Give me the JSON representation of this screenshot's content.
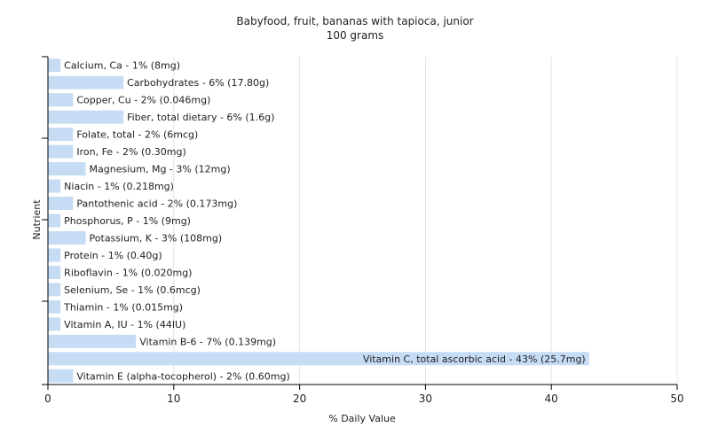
{
  "chart_data": {
    "type": "bar",
    "orientation": "horizontal",
    "title": "Babyfood, fruit, bananas with tapioca, junior",
    "subtitle": "100 grams",
    "xlabel": "% Daily Value",
    "ylabel": "Nutrient",
    "xlim": [
      0,
      50
    ],
    "xticks": [
      0,
      10,
      20,
      30,
      40,
      50
    ],
    "grid": true,
    "bar_color": "#c6dcf5",
    "categories": [
      "Calcium, Ca",
      "Carbohydrates",
      "Copper, Cu",
      "Fiber, total dietary",
      "Folate, total",
      "Iron, Fe",
      "Magnesium, Mg",
      "Niacin",
      "Pantothenic acid",
      "Phosphorus, P",
      "Potassium, K",
      "Protein",
      "Riboflavin",
      "Selenium, Se",
      "Thiamin",
      "Vitamin A, IU",
      "Vitamin B-6",
      "Vitamin C, total ascorbic acid",
      "Vitamin E (alpha-tocopherol)"
    ],
    "values": [
      1,
      6,
      2,
      6,
      2,
      2,
      3,
      1,
      2,
      1,
      3,
      1,
      1,
      1,
      1,
      1,
      7,
      43,
      2
    ],
    "labels": [
      "Calcium, Ca - 1% (8mg)",
      "Carbohydrates - 6% (17.80g)",
      "Copper, Cu - 2% (0.046mg)",
      "Fiber, total dietary - 6% (1.6g)",
      "Folate, total - 2% (6mcg)",
      "Iron, Fe - 2% (0.30mg)",
      "Magnesium, Mg - 3% (12mg)",
      "Niacin - 1% (0.218mg)",
      "Pantothenic acid - 2% (0.173mg)",
      "Phosphorus, P - 1% (9mg)",
      "Potassium, K - 3% (108mg)",
      "Protein - 1% (0.40g)",
      "Riboflavin - 1% (0.020mg)",
      "Selenium, Se - 1% (0.6mcg)",
      "Thiamin - 1% (0.015mg)",
      "Vitamin A, IU - 1% (44IU)",
      "Vitamin B-6 - 7% (0.139mg)",
      "Vitamin C, total ascorbic acid - 43% (25.7mg)",
      "Vitamin E (alpha-tocopherol) - 2% (0.60mg)"
    ]
  }
}
